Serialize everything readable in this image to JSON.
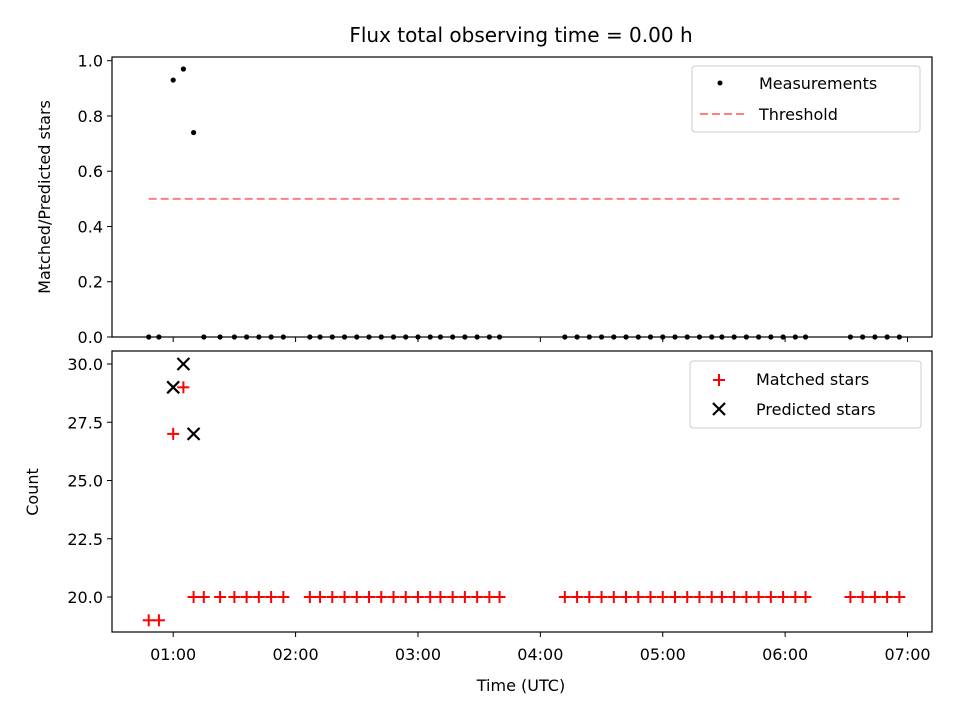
{
  "chart_data": [
    {
      "type": "scatter",
      "panel": "top",
      "title": "Flux total observing time = 0.00 h",
      "xlabel": "",
      "ylabel": "Matched/Predicted stars",
      "ylim": [
        0.0,
        1.0
      ],
      "yticks": [
        "0.0",
        "0.2",
        "0.4",
        "0.6",
        "0.8",
        "1.0"
      ],
      "yticks_values": [
        0.0,
        0.2,
        0.4,
        0.6,
        0.8,
        1.0
      ],
      "legend_position": "top-right",
      "series": [
        {
          "name": "Measurements",
          "color": "#000000",
          "marker": "dot",
          "x": [
            "00:48",
            "00:53",
            "01:00",
            "01:05",
            "01:10",
            "01:15",
            "01:23",
            "01:30",
            "01:36",
            "01:42",
            "01:48",
            "01:54",
            "02:07",
            "02:12",
            "02:18",
            "02:24",
            "02:30",
            "02:36",
            "02:42",
            "02:48",
            "02:54",
            "03:00",
            "03:06",
            "03:11",
            "03:17",
            "03:23",
            "03:29",
            "03:35",
            "03:40",
            "04:12",
            "04:18",
            "04:24",
            "04:30",
            "04:36",
            "04:42",
            "04:48",
            "04:54",
            "05:00",
            "05:06",
            "05:12",
            "05:18",
            "05:24",
            "05:29",
            "05:35",
            "05:41",
            "05:47",
            "05:53",
            "05:59",
            "06:05",
            "06:10",
            "06:32",
            "06:38",
            "06:44",
            "06:50",
            "06:56"
          ],
          "y": [
            0,
            0,
            0.93,
            0.97,
            0.74,
            0,
            0,
            0,
            0,
            0,
            0,
            0,
            0,
            0,
            0,
            0,
            0,
            0,
            0,
            0,
            0,
            0,
            0,
            0,
            0,
            0,
            0,
            0,
            0,
            0,
            0,
            0,
            0,
            0,
            0,
            0,
            0,
            0,
            0,
            0,
            0,
            0,
            0,
            0,
            0,
            0,
            0,
            0,
            0,
            0,
            0,
            0,
            0,
            0,
            0
          ]
        },
        {
          "name": "Threshold",
          "color": "#ff7f7f",
          "style": "dashed",
          "x": [
            "00:48",
            "06:56"
          ],
          "y": [
            0.5,
            0.5
          ]
        }
      ]
    },
    {
      "type": "scatter",
      "panel": "bottom",
      "title": "",
      "xlabel": "Time (UTC)",
      "ylabel": "Count",
      "xlim": [
        "00:30",
        "07:12"
      ],
      "ylim": [
        18.5,
        30.5
      ],
      "xticks": [
        "01:00",
        "02:00",
        "03:00",
        "04:00",
        "05:00",
        "06:00",
        "07:00"
      ],
      "yticks": [
        "20.0",
        "22.5",
        "25.0",
        "27.5",
        "30.0"
      ],
      "yticks_values": [
        20.0,
        22.5,
        25.0,
        27.5,
        30.0
      ],
      "legend_position": "top-right",
      "series": [
        {
          "name": "Matched stars",
          "color": "#ff0000",
          "marker": "plus",
          "x": [
            "00:48",
            "00:53",
            "01:00",
            "01:05",
            "01:10",
            "01:15",
            "01:23",
            "01:30",
            "01:36",
            "01:42",
            "01:48",
            "01:54",
            "02:07",
            "02:12",
            "02:18",
            "02:24",
            "02:30",
            "02:36",
            "02:42",
            "02:48",
            "02:54",
            "03:00",
            "03:06",
            "03:11",
            "03:17",
            "03:23",
            "03:29",
            "03:35",
            "03:40",
            "04:12",
            "04:18",
            "04:24",
            "04:30",
            "04:36",
            "04:42",
            "04:48",
            "04:54",
            "05:00",
            "05:06",
            "05:12",
            "05:18",
            "05:24",
            "05:29",
            "05:35",
            "05:41",
            "05:47",
            "05:53",
            "05:59",
            "06:05",
            "06:10",
            "06:32",
            "06:38",
            "06:44",
            "06:50",
            "06:56"
          ],
          "y": [
            19,
            19,
            27,
            29,
            20,
            20,
            20,
            20,
            20,
            20,
            20,
            20,
            20,
            20,
            20,
            20,
            20,
            20,
            20,
            20,
            20,
            20,
            20,
            20,
            20,
            20,
            20,
            20,
            20,
            20,
            20,
            20,
            20,
            20,
            20,
            20,
            20,
            20,
            20,
            20,
            20,
            20,
            20,
            20,
            20,
            20,
            20,
            20,
            20,
            20,
            20,
            20,
            20,
            20,
            20
          ]
        },
        {
          "name": "Predicted stars",
          "color": "#000000",
          "marker": "x",
          "x": [
            "01:00",
            "01:05",
            "01:10"
          ],
          "y": [
            29,
            30,
            27
          ]
        }
      ]
    }
  ]
}
